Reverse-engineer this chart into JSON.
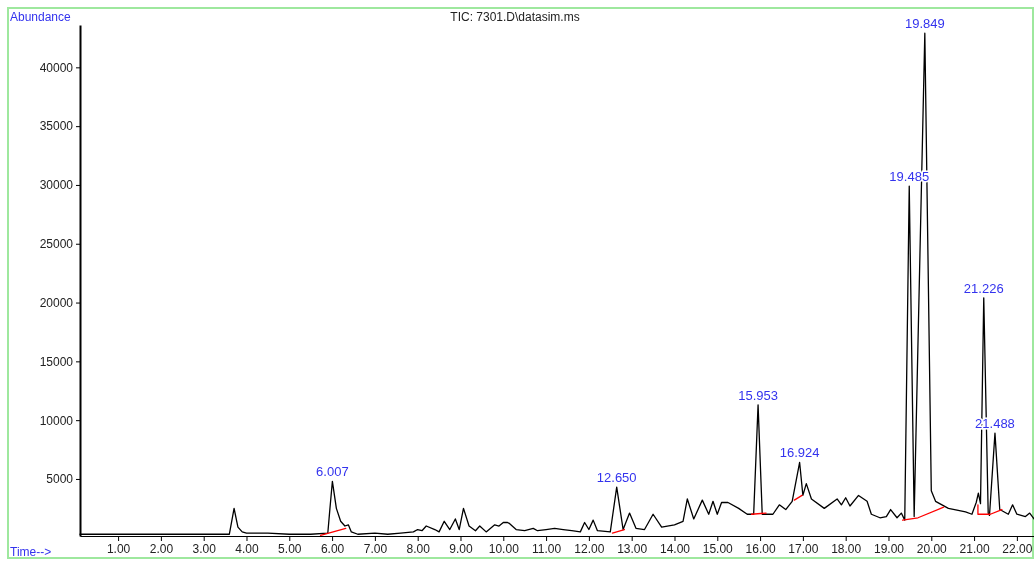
{
  "chart_data": {
    "type": "line",
    "title": "TIC: 7301.D\\datasim.ms",
    "xlabel": "Time-->",
    "ylabel": "Abundance",
    "xlim": [
      0.11,
      22.4
    ],
    "ylim": [
      150,
      43600
    ],
    "xticks": [
      {
        "value": 1,
        "label": "1.00"
      },
      {
        "value": 2,
        "label": "2.00"
      },
      {
        "value": 3,
        "label": "3.00"
      },
      {
        "value": 4,
        "label": "4.00"
      },
      {
        "value": 5,
        "label": "5.00"
      },
      {
        "value": 6,
        "label": "6.00"
      },
      {
        "value": 7,
        "label": "7.00"
      },
      {
        "value": 8,
        "label": "8.00"
      },
      {
        "value": 9,
        "label": "9.00"
      },
      {
        "value": 10,
        "label": "10.00"
      },
      {
        "value": 11,
        "label": "11.00"
      },
      {
        "value": 12,
        "label": "12.00"
      },
      {
        "value": 13,
        "label": "13.00"
      },
      {
        "value": 14,
        "label": "14.00"
      },
      {
        "value": 15,
        "label": "15.00"
      },
      {
        "value": 16,
        "label": "16.00"
      },
      {
        "value": 17,
        "label": "17.00"
      },
      {
        "value": 18,
        "label": "18.00"
      },
      {
        "value": 19,
        "label": "19.00"
      },
      {
        "value": 20,
        "label": "20.00"
      },
      {
        "value": 21,
        "label": "21.00"
      },
      {
        "value": 22,
        "label": "22.00"
      }
    ],
    "yticks": [
      5000,
      10000,
      15000,
      20000,
      25000,
      30000,
      35000,
      40000
    ],
    "grid": false,
    "marker": "none",
    "line_style": "solid",
    "series": [
      {
        "color": "#000000",
        "x": [
          0.11,
          3.6,
          3.71,
          3.8,
          3.9,
          4.0,
          4.5,
          5.0,
          5.5,
          5.9,
          5.95,
          6.007,
          6.1,
          6.2,
          6.3,
          6.38,
          6.45,
          6.6,
          7.0,
          7.3,
          7.6,
          7.9,
          8.0,
          8.1,
          8.2,
          8.4,
          8.5,
          8.62,
          8.75,
          8.88,
          8.97,
          9.07,
          9.2,
          9.35,
          9.45,
          9.6,
          9.8,
          9.9,
          10.0,
          10.1,
          10.15,
          10.3,
          10.5,
          10.7,
          10.8,
          11.0,
          11.2,
          11.4,
          11.6,
          11.8,
          11.9,
          12.0,
          12.1,
          12.2,
          12.5,
          12.65,
          12.8,
          12.95,
          13.1,
          13.3,
          13.5,
          13.7,
          14.0,
          14.2,
          14.3,
          14.45,
          14.65,
          14.8,
          14.9,
          15.0,
          15.1,
          15.25,
          15.5,
          15.7,
          15.85,
          15.953,
          16.05,
          16.3,
          16.45,
          16.6,
          16.75,
          16.924,
          17.0,
          17.08,
          17.2,
          17.5,
          17.8,
          17.9,
          18.0,
          18.1,
          18.3,
          18.5,
          18.6,
          18.8,
          18.95,
          19.05,
          19.2,
          19.3,
          19.38,
          19.485,
          19.6,
          19.849,
          20.0,
          20.1,
          20.4,
          20.8,
          20.95,
          21.05,
          21.1,
          21.15,
          21.226,
          21.33,
          21.36,
          21.488,
          21.6,
          21.8,
          21.9,
          22.0,
          22.2,
          22.3,
          22.4
        ],
        "values": [
          300,
          300,
          2500,
          900,
          500,
          400,
          400,
          300,
          300,
          400,
          2500,
          4800,
          2500,
          1400,
          1000,
          1100,
          500,
          300,
          400,
          300,
          400,
          500,
          700,
          600,
          1000,
          700,
          500,
          1400,
          700,
          1600,
          700,
          2500,
          1000,
          600,
          1000,
          500,
          1100,
          1000,
          1300,
          1300,
          1200,
          700,
          600,
          800,
          600,
          700,
          800,
          700,
          600,
          500,
          1300,
          700,
          1500,
          600,
          500,
          4300,
          700,
          2100,
          800,
          700,
          2000,
          900,
          1100,
          1400,
          3300,
          1600,
          3200,
          2000,
          3100,
          2000,
          3000,
          3000,
          2500,
          2000,
          2000,
          11300,
          2000,
          2000,
          2800,
          2400,
          3100,
          6400,
          3600,
          4600,
          3300,
          2500,
          3300,
          2800,
          3400,
          2700,
          3600,
          3100,
          2000,
          1700,
          1800,
          2400,
          1700,
          2100,
          1500,
          29900,
          1800,
          42900,
          4000,
          3100,
          2500,
          2200,
          2000,
          3000,
          3800,
          2900,
          20400,
          2100,
          1900,
          8900,
          2400,
          2000,
          2800,
          2000,
          1800,
          2100,
          1600
        ]
      },
      {
        "color": "#ff0000",
        "x": [
          5.73,
          6.32,
          6.4,
          12.55,
          12.83,
          12.9,
          15.8,
          16.14,
          16.2,
          16.8,
          16.98,
          17.1,
          19.33,
          19.69,
          20.29,
          20.4,
          21.09,
          21.09,
          21.38,
          21.65
        ],
        "values": [
          200,
          800,
          null,
          400,
          700,
          null,
          2000,
          2100,
          null,
          3200,
          3600,
          null,
          1500,
          1700,
          2600,
          null,
          2800,
          2000,
          2000,
          2400
        ]
      }
    ],
    "annotations": [
      {
        "text": "6.007",
        "x": 6.007,
        "y": 4800
      },
      {
        "text": "12.650",
        "x": 12.65,
        "y": 4300
      },
      {
        "text": "15.953",
        "x": 15.953,
        "y": 11300
      },
      {
        "text": "16.924",
        "x": 16.924,
        "y": 6400
      },
      {
        "text": "19.485",
        "x": 19.485,
        "y": 29900
      },
      {
        "text": "19.849",
        "x": 19.849,
        "y": 42900
      },
      {
        "text": "21.226",
        "x": 21.226,
        "y": 20400
      },
      {
        "text": "21.488",
        "x": 21.488,
        "y": 8900
      }
    ]
  }
}
